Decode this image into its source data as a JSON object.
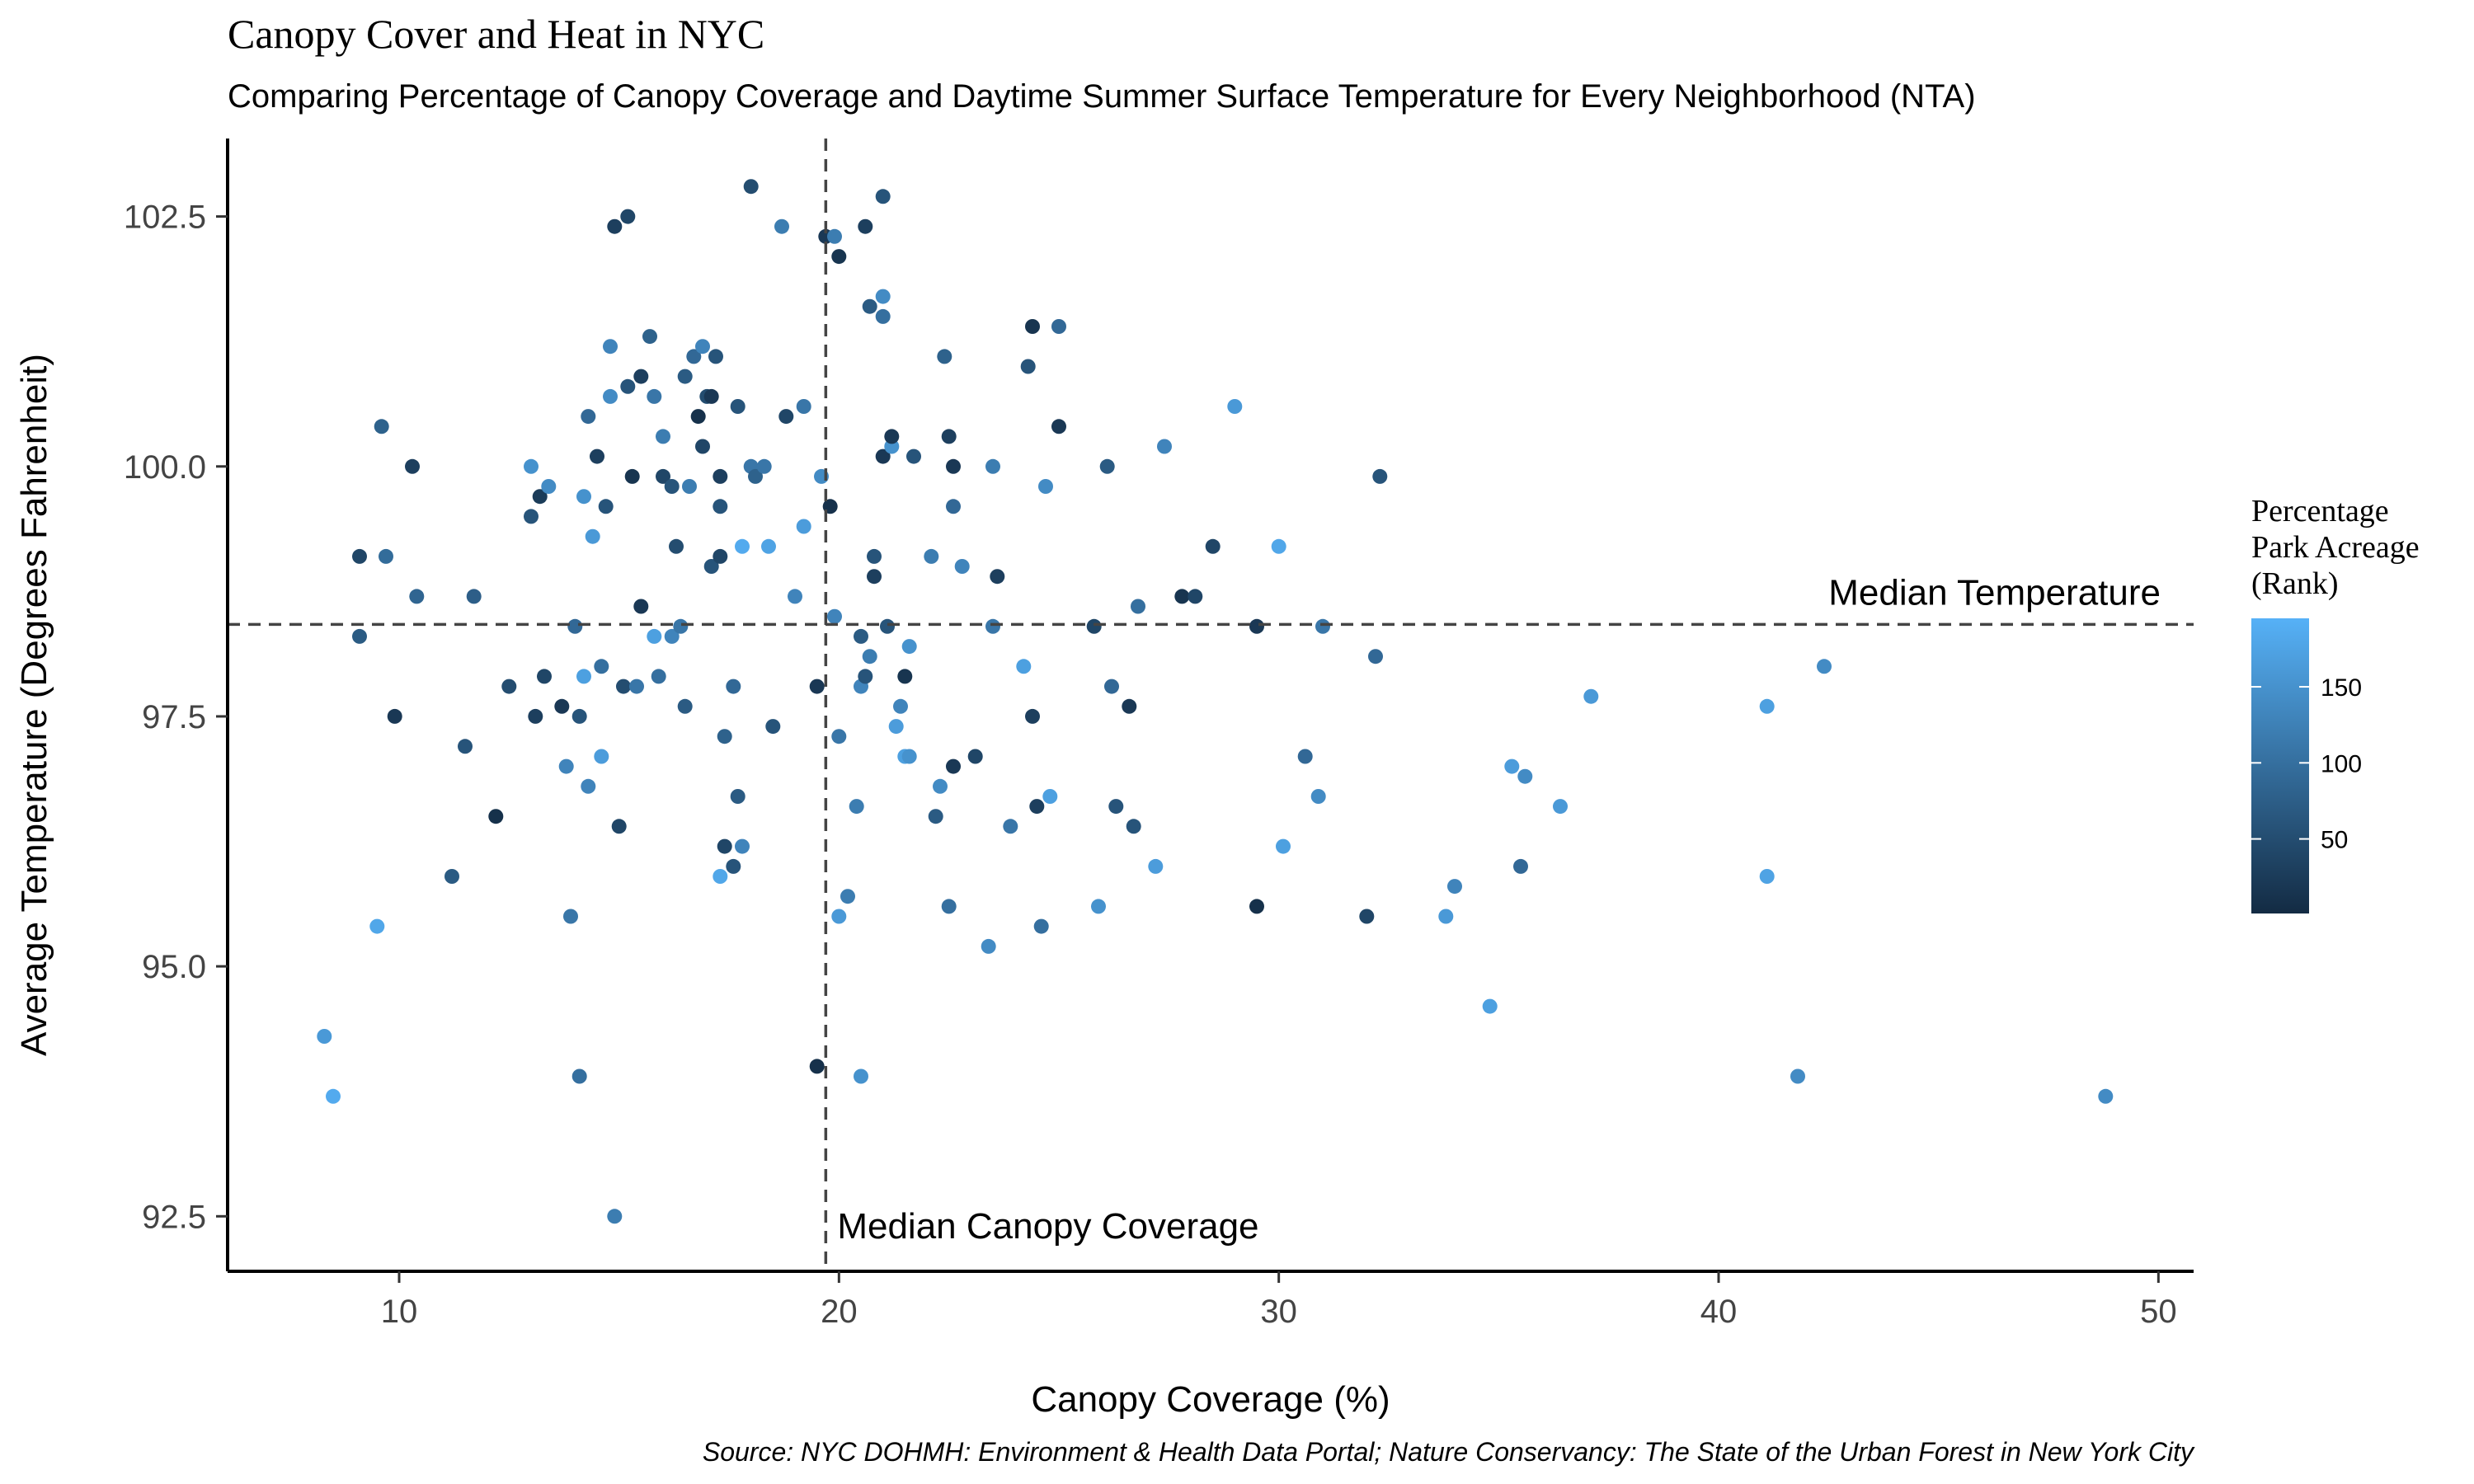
{
  "chart_data": {
    "type": "scatter",
    "title": "Canopy Cover and Heat in NYC",
    "subtitle": "Comparing Percentage of Canopy Coverage and Daytime Summer Surface Temperature for Every Neighborhood (NTA)",
    "xlabel": "Canopy Coverage (%)",
    "ylabel": "Average Temperature (Degrees Fahrenheit)",
    "caption": "Source: NYC DOHMH: Environment & Health Data Portal; Nature Conservancy: The State of the Urban Forest in New York City",
    "xlim": [
      6.1,
      50.8
    ],
    "ylim": [
      91.95,
      103.28
    ],
    "x_ticks": [
      10,
      20,
      30,
      40,
      50
    ],
    "y_ticks": [
      92.5,
      95.0,
      97.5,
      100.0,
      102.5
    ],
    "x_tick_labels": [
      "10",
      "20",
      "30",
      "40",
      "50"
    ],
    "y_tick_labels": [
      "92.5",
      "95.0",
      "97.5",
      "100.0",
      "102.5"
    ],
    "grid": false,
    "reference_lines": {
      "median_canopy": {
        "x": 19.7,
        "label": "Median Canopy Coverage"
      },
      "median_temperature": {
        "y": 98.42,
        "label": "Median Temperature"
      }
    },
    "legend": {
      "title_lines": [
        "Percentage",
        "Park Acreage",
        "(Rank)"
      ],
      "ticks": [
        50,
        100,
        150
      ],
      "tick_labels": [
        "50",
        "100",
        "150"
      ],
      "range": [
        1,
        195
      ],
      "placement": "right",
      "color_low": "#132b43",
      "color_high": "#56b1f7"
    },
    "points": [
      {
        "x": 8.3,
        "y": 94.3,
        "rank": 160
      },
      {
        "x": 8.5,
        "y": 93.7,
        "rank": 185
      },
      {
        "x": 9.1,
        "y": 99.1,
        "rank": 40
      },
      {
        "x": 9.1,
        "y": 98.3,
        "rank": 70
      },
      {
        "x": 9.5,
        "y": 95.4,
        "rank": 180
      },
      {
        "x": 9.6,
        "y": 100.4,
        "rank": 80
      },
      {
        "x": 9.7,
        "y": 99.1,
        "rank": 95
      },
      {
        "x": 9.9,
        "y": 97.5,
        "rank": 20
      },
      {
        "x": 10.3,
        "y": 100.0,
        "rank": 30
      },
      {
        "x": 10.4,
        "y": 98.7,
        "rank": 85
      },
      {
        "x": 11.2,
        "y": 95.9,
        "rank": 70
      },
      {
        "x": 11.5,
        "y": 97.2,
        "rank": 60
      },
      {
        "x": 11.7,
        "y": 98.7,
        "rank": 75
      },
      {
        "x": 12.2,
        "y": 96.5,
        "rank": 10
      },
      {
        "x": 12.5,
        "y": 97.8,
        "rank": 50
      },
      {
        "x": 13.0,
        "y": 100.0,
        "rank": 150
      },
      {
        "x": 13.0,
        "y": 99.5,
        "rank": 60
      },
      {
        "x": 13.1,
        "y": 97.5,
        "rank": 30
      },
      {
        "x": 13.2,
        "y": 99.7,
        "rank": 25
      },
      {
        "x": 13.3,
        "y": 97.9,
        "rank": 40
      },
      {
        "x": 13.4,
        "y": 99.8,
        "rank": 140
      },
      {
        "x": 13.7,
        "y": 97.6,
        "rank": 20
      },
      {
        "x": 13.8,
        "y": 97.0,
        "rank": 130
      },
      {
        "x": 13.9,
        "y": 95.5,
        "rank": 110
      },
      {
        "x": 14.0,
        "y": 98.4,
        "rank": 90
      },
      {
        "x": 14.1,
        "y": 97.5,
        "rank": 60
      },
      {
        "x": 14.1,
        "y": 93.9,
        "rank": 100
      },
      {
        "x": 14.2,
        "y": 97.9,
        "rank": 170
      },
      {
        "x": 14.2,
        "y": 99.7,
        "rank": 150
      },
      {
        "x": 14.3,
        "y": 96.8,
        "rank": 130
      },
      {
        "x": 14.3,
        "y": 100.5,
        "rank": 90
      },
      {
        "x": 14.4,
        "y": 99.3,
        "rank": 160
      },
      {
        "x": 14.5,
        "y": 100.1,
        "rank": 30
      },
      {
        "x": 14.6,
        "y": 97.1,
        "rank": 165
      },
      {
        "x": 14.6,
        "y": 98.0,
        "rank": 100
      },
      {
        "x": 14.7,
        "y": 99.6,
        "rank": 60
      },
      {
        "x": 14.8,
        "y": 100.7,
        "rank": 140
      },
      {
        "x": 14.8,
        "y": 101.2,
        "rank": 130
      },
      {
        "x": 14.9,
        "y": 102.4,
        "rank": 30
      },
      {
        "x": 14.9,
        "y": 92.5,
        "rank": 120
      },
      {
        "x": 15.0,
        "y": 96.4,
        "rank": 40
      },
      {
        "x": 15.1,
        "y": 97.8,
        "rank": 50
      },
      {
        "x": 15.2,
        "y": 102.5,
        "rank": 40
      },
      {
        "x": 15.2,
        "y": 100.8,
        "rank": 60
      },
      {
        "x": 15.3,
        "y": 99.9,
        "rank": 15
      },
      {
        "x": 15.4,
        "y": 97.8,
        "rank": 110
      },
      {
        "x": 15.5,
        "y": 98.6,
        "rank": 20
      },
      {
        "x": 15.5,
        "y": 100.9,
        "rank": 30
      },
      {
        "x": 15.7,
        "y": 101.3,
        "rank": 80
      },
      {
        "x": 15.8,
        "y": 100.7,
        "rank": 110
      },
      {
        "x": 15.8,
        "y": 98.3,
        "rank": 170
      },
      {
        "x": 15.9,
        "y": 97.9,
        "rank": 100
      },
      {
        "x": 16.0,
        "y": 99.9,
        "rank": 40
      },
      {
        "x": 16.0,
        "y": 100.3,
        "rank": 120
      },
      {
        "x": 16.2,
        "y": 98.3,
        "rank": 130
      },
      {
        "x": 16.2,
        "y": 99.8,
        "rank": 60
      },
      {
        "x": 16.3,
        "y": 99.2,
        "rank": 50
      },
      {
        "x": 16.4,
        "y": 98.4,
        "rank": 110
      },
      {
        "x": 16.5,
        "y": 100.9,
        "rank": 70
      },
      {
        "x": 16.5,
        "y": 97.6,
        "rank": 70
      },
      {
        "x": 16.6,
        "y": 99.8,
        "rank": 120
      },
      {
        "x": 16.7,
        "y": 101.1,
        "rank": 90
      },
      {
        "x": 16.8,
        "y": 100.5,
        "rank": 10
      },
      {
        "x": 16.9,
        "y": 100.2,
        "rank": 40
      },
      {
        "x": 16.9,
        "y": 101.2,
        "rank": 130
      },
      {
        "x": 17.0,
        "y": 100.7,
        "rank": 50
      },
      {
        "x": 17.1,
        "y": 100.7,
        "rank": 20
      },
      {
        "x": 17.1,
        "y": 99.0,
        "rank": 60
      },
      {
        "x": 17.2,
        "y": 101.1,
        "rank": 60
      },
      {
        "x": 17.3,
        "y": 99.1,
        "rank": 40
      },
      {
        "x": 17.3,
        "y": 99.6,
        "rank": 60
      },
      {
        "x": 17.3,
        "y": 99.9,
        "rank": 30
      },
      {
        "x": 17.3,
        "y": 95.9,
        "rank": 180
      },
      {
        "x": 17.4,
        "y": 97.3,
        "rank": 80
      },
      {
        "x": 17.4,
        "y": 96.2,
        "rank": 40
      },
      {
        "x": 17.6,
        "y": 97.8,
        "rank": 90
      },
      {
        "x": 17.6,
        "y": 96.0,
        "rank": 60
      },
      {
        "x": 17.7,
        "y": 96.7,
        "rank": 70
      },
      {
        "x": 17.7,
        "y": 100.6,
        "rank": 60
      },
      {
        "x": 17.8,
        "y": 99.2,
        "rank": 185
      },
      {
        "x": 17.8,
        "y": 96.2,
        "rank": 130
      },
      {
        "x": 18.0,
        "y": 102.8,
        "rank": 50
      },
      {
        "x": 18.0,
        "y": 100.0,
        "rank": 110
      },
      {
        "x": 18.1,
        "y": 99.9,
        "rank": 80
      },
      {
        "x": 18.3,
        "y": 100.0,
        "rank": 110
      },
      {
        "x": 18.4,
        "y": 99.2,
        "rank": 175
      },
      {
        "x": 18.5,
        "y": 97.4,
        "rank": 60
      },
      {
        "x": 18.7,
        "y": 102.4,
        "rank": 120
      },
      {
        "x": 18.8,
        "y": 100.5,
        "rank": 40
      },
      {
        "x": 19.0,
        "y": 98.7,
        "rank": 130
      },
      {
        "x": 19.2,
        "y": 100.6,
        "rank": 110
      },
      {
        "x": 19.2,
        "y": 99.4,
        "rank": 165
      },
      {
        "x": 19.5,
        "y": 94.0,
        "rank": 10
      },
      {
        "x": 19.5,
        "y": 97.8,
        "rank": 20
      },
      {
        "x": 19.6,
        "y": 99.9,
        "rank": 140
      },
      {
        "x": 19.7,
        "y": 102.3,
        "rank": 20
      },
      {
        "x": 19.8,
        "y": 99.6,
        "rank": 10
      },
      {
        "x": 19.9,
        "y": 98.5,
        "rank": 130
      },
      {
        "x": 19.9,
        "y": 102.3,
        "rank": 120
      },
      {
        "x": 20.0,
        "y": 95.5,
        "rank": 160
      },
      {
        "x": 20.0,
        "y": 97.3,
        "rank": 110
      },
      {
        "x": 20.0,
        "y": 102.1,
        "rank": 15
      },
      {
        "x": 20.2,
        "y": 95.7,
        "rank": 120
      },
      {
        "x": 20.4,
        "y": 96.6,
        "rank": 120
      },
      {
        "x": 20.5,
        "y": 93.9,
        "rank": 150
      },
      {
        "x": 20.5,
        "y": 97.8,
        "rank": 130
      },
      {
        "x": 20.5,
        "y": 98.3,
        "rank": 70
      },
      {
        "x": 20.6,
        "y": 97.9,
        "rank": 60
      },
      {
        "x": 20.6,
        "y": 102.4,
        "rank": 30
      },
      {
        "x": 20.7,
        "y": 98.1,
        "rank": 120
      },
      {
        "x": 20.7,
        "y": 101.6,
        "rank": 70
      },
      {
        "x": 20.8,
        "y": 99.1,
        "rank": 60
      },
      {
        "x": 20.8,
        "y": 98.9,
        "rank": 30
      },
      {
        "x": 21.0,
        "y": 102.7,
        "rank": 60
      },
      {
        "x": 21.0,
        "y": 101.7,
        "rank": 140
      },
      {
        "x": 21.0,
        "y": 100.1,
        "rank": 20
      },
      {
        "x": 21.0,
        "y": 101.5,
        "rank": 100
      },
      {
        "x": 21.1,
        "y": 98.4,
        "rank": 60
      },
      {
        "x": 21.2,
        "y": 100.2,
        "rank": 150
      },
      {
        "x": 21.2,
        "y": 100.3,
        "rank": 20
      },
      {
        "x": 21.3,
        "y": 97.4,
        "rank": 165
      },
      {
        "x": 21.4,
        "y": 97.6,
        "rank": 130
      },
      {
        "x": 21.5,
        "y": 97.1,
        "rank": 170
      },
      {
        "x": 21.5,
        "y": 97.9,
        "rank": 15
      },
      {
        "x": 21.6,
        "y": 97.1,
        "rank": 150
      },
      {
        "x": 21.6,
        "y": 98.2,
        "rank": 150
      },
      {
        "x": 21.7,
        "y": 100.1,
        "rank": 60
      },
      {
        "x": 22.1,
        "y": 99.1,
        "rank": 120
      },
      {
        "x": 22.2,
        "y": 96.5,
        "rank": 70
      },
      {
        "x": 22.3,
        "y": 96.8,
        "rank": 140
      },
      {
        "x": 22.4,
        "y": 101.1,
        "rank": 80
      },
      {
        "x": 22.5,
        "y": 100.3,
        "rank": 30
      },
      {
        "x": 22.5,
        "y": 95.6,
        "rank": 100
      },
      {
        "x": 22.6,
        "y": 100.0,
        "rank": 20
      },
      {
        "x": 22.6,
        "y": 99.6,
        "rank": 90
      },
      {
        "x": 22.6,
        "y": 97.0,
        "rank": 20
      },
      {
        "x": 22.8,
        "y": 99.0,
        "rank": 130
      },
      {
        "x": 23.1,
        "y": 97.1,
        "rank": 40
      },
      {
        "x": 23.4,
        "y": 95.2,
        "rank": 140
      },
      {
        "x": 23.5,
        "y": 98.4,
        "rank": 110
      },
      {
        "x": 23.5,
        "y": 100.0,
        "rank": 120
      },
      {
        "x": 23.6,
        "y": 98.9,
        "rank": 30
      },
      {
        "x": 23.9,
        "y": 96.4,
        "rank": 110
      },
      {
        "x": 24.2,
        "y": 98.0,
        "rank": 170
      },
      {
        "x": 24.3,
        "y": 101.0,
        "rank": 60
      },
      {
        "x": 24.4,
        "y": 101.4,
        "rank": 15
      },
      {
        "x": 24.4,
        "y": 97.5,
        "rank": 30
      },
      {
        "x": 24.5,
        "y": 96.6,
        "rank": 30
      },
      {
        "x": 24.6,
        "y": 95.4,
        "rank": 100
      },
      {
        "x": 24.7,
        "y": 99.8,
        "rank": 140
      },
      {
        "x": 24.8,
        "y": 96.7,
        "rank": 170
      },
      {
        "x": 25.0,
        "y": 100.4,
        "rank": 20
      },
      {
        "x": 25.0,
        "y": 101.4,
        "rank": 90
      },
      {
        "x": 25.8,
        "y": 98.4,
        "rank": 40
      },
      {
        "x": 25.9,
        "y": 95.6,
        "rank": 150
      },
      {
        "x": 26.1,
        "y": 100.0,
        "rank": 70
      },
      {
        "x": 26.2,
        "y": 97.8,
        "rank": 90
      },
      {
        "x": 26.3,
        "y": 96.6,
        "rank": 60
      },
      {
        "x": 26.6,
        "y": 97.6,
        "rank": 20
      },
      {
        "x": 26.7,
        "y": 96.4,
        "rank": 60
      },
      {
        "x": 26.8,
        "y": 98.6,
        "rank": 100
      },
      {
        "x": 27.2,
        "y": 96.0,
        "rank": 165
      },
      {
        "x": 27.4,
        "y": 100.2,
        "rank": 130
      },
      {
        "x": 27.8,
        "y": 98.7,
        "rank": 15
      },
      {
        "x": 28.1,
        "y": 98.7,
        "rank": 40
      },
      {
        "x": 28.5,
        "y": 99.2,
        "rank": 40
      },
      {
        "x": 29.0,
        "y": 100.6,
        "rank": 160
      },
      {
        "x": 29.5,
        "y": 98.4,
        "rank": 20
      },
      {
        "x": 29.5,
        "y": 95.6,
        "rank": 10
      },
      {
        "x": 30.0,
        "y": 99.2,
        "rank": 180
      },
      {
        "x": 30.1,
        "y": 96.2,
        "rank": 170
      },
      {
        "x": 30.6,
        "y": 97.1,
        "rank": 90
      },
      {
        "x": 30.9,
        "y": 96.7,
        "rank": 140
      },
      {
        "x": 31.0,
        "y": 98.4,
        "rank": 110
      },
      {
        "x": 32.0,
        "y": 95.5,
        "rank": 40
      },
      {
        "x": 32.2,
        "y": 98.1,
        "rank": 90
      },
      {
        "x": 32.3,
        "y": 99.9,
        "rank": 60
      },
      {
        "x": 33.8,
        "y": 95.5,
        "rank": 160
      },
      {
        "x": 34.0,
        "y": 95.8,
        "rank": 130
      },
      {
        "x": 34.8,
        "y": 94.6,
        "rank": 170
      },
      {
        "x": 35.3,
        "y": 97.0,
        "rank": 165
      },
      {
        "x": 35.5,
        "y": 96.0,
        "rank": 90
      },
      {
        "x": 35.6,
        "y": 96.9,
        "rank": 140
      },
      {
        "x": 36.4,
        "y": 96.6,
        "rank": 160
      },
      {
        "x": 37.1,
        "y": 97.7,
        "rank": 160
      },
      {
        "x": 41.1,
        "y": 97.6,
        "rank": 170
      },
      {
        "x": 41.1,
        "y": 95.9,
        "rank": 175
      },
      {
        "x": 41.8,
        "y": 93.9,
        "rank": 140
      },
      {
        "x": 42.4,
        "y": 98.0,
        "rank": 140
      },
      {
        "x": 48.8,
        "y": 93.7,
        "rank": 140
      }
    ]
  }
}
